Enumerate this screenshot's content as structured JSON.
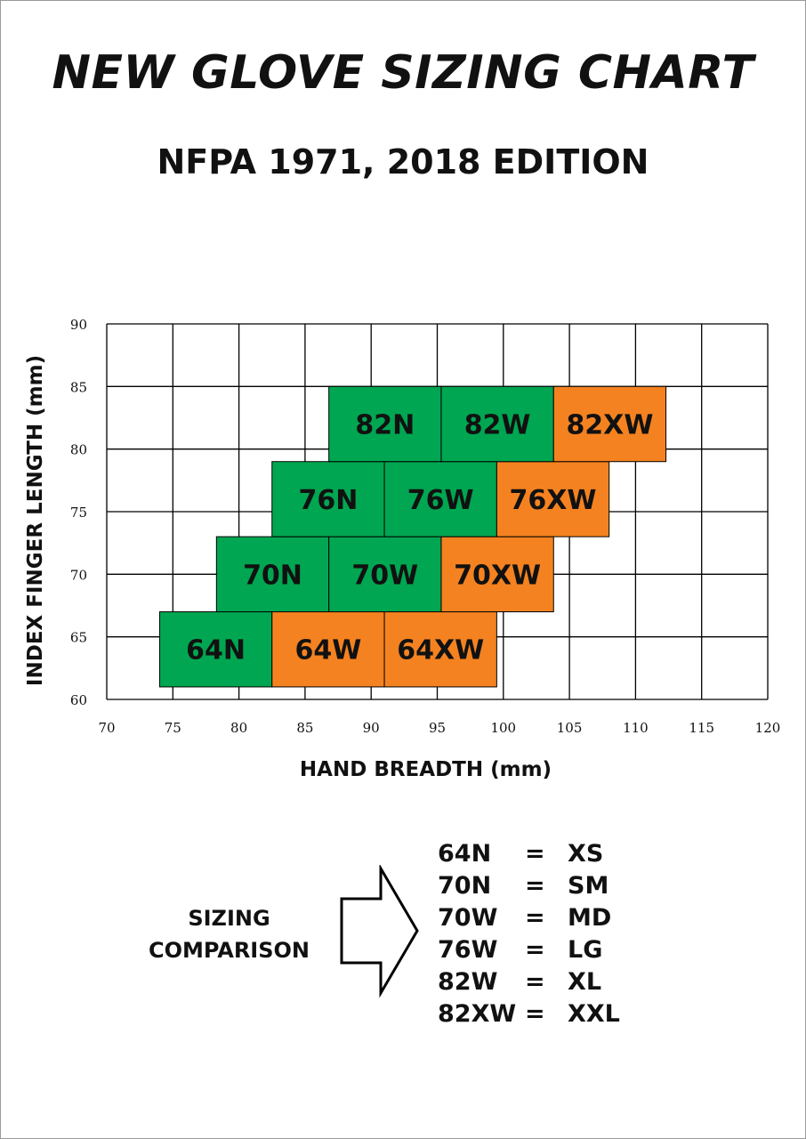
{
  "colors": {
    "normal": "#00a651",
    "xwide": "#f58220",
    "grid": "#000000",
    "text": "#111111"
  },
  "chart_data": {
    "type": "heatmap",
    "title": "NEW GLOVE SIZING CHART",
    "subtitle": "NFPA 1971, 2018 EDITION",
    "xlabel": "HAND BREADTH (mm)",
    "ylabel": "INDEX FINGER LENGTH (mm)",
    "xlim": [
      70,
      120
    ],
    "ylim": [
      60,
      90
    ],
    "xticks": [
      70,
      75,
      80,
      85,
      90,
      95,
      100,
      105,
      110,
      115,
      120
    ],
    "yticks": [
      60,
      65,
      70,
      75,
      80,
      85,
      90
    ],
    "grid": true,
    "cells": [
      {
        "label": "64N",
        "x": [
          74,
          82.5
        ],
        "y": [
          61,
          67
        ],
        "kind": "normal"
      },
      {
        "label": "64W",
        "x": [
          82.5,
          91
        ],
        "y": [
          61,
          67
        ],
        "kind": "xwide"
      },
      {
        "label": "64XW",
        "x": [
          91,
          99.5
        ],
        "y": [
          61,
          67
        ],
        "kind": "xwide"
      },
      {
        "label": "70N",
        "x": [
          78.3,
          86.8
        ],
        "y": [
          67,
          73
        ],
        "kind": "normal"
      },
      {
        "label": "70W",
        "x": [
          86.8,
          95.3
        ],
        "y": [
          67,
          73
        ],
        "kind": "normal"
      },
      {
        "label": "70XW",
        "x": [
          95.3,
          103.8
        ],
        "y": [
          67,
          73
        ],
        "kind": "xwide"
      },
      {
        "label": "76N",
        "x": [
          82.5,
          91
        ],
        "y": [
          73,
          79
        ],
        "kind": "normal"
      },
      {
        "label": "76W",
        "x": [
          91,
          99.5
        ],
        "y": [
          73,
          79
        ],
        "kind": "normal"
      },
      {
        "label": "76XW",
        "x": [
          99.5,
          108
        ],
        "y": [
          73,
          79
        ],
        "kind": "xwide"
      },
      {
        "label": "82N",
        "x": [
          86.8,
          95.3
        ],
        "y": [
          79,
          85
        ],
        "kind": "normal"
      },
      {
        "label": "82W",
        "x": [
          95.3,
          103.8
        ],
        "y": [
          79,
          85
        ],
        "kind": "normal"
      },
      {
        "label": "82XW",
        "x": [
          103.8,
          112.3
        ],
        "y": [
          79,
          85
        ],
        "kind": "xwide"
      }
    ]
  },
  "comparison": {
    "label_line1": "SIZING",
    "label_line2": "COMPARISON",
    "rows": [
      {
        "code": "64N",
        "eq": "=",
        "size": "XS"
      },
      {
        "code": "70N",
        "eq": "=",
        "size": "SM"
      },
      {
        "code": "70W",
        "eq": "=",
        "size": "MD"
      },
      {
        "code": "76W",
        "eq": "=",
        "size": "LG"
      },
      {
        "code": "82W",
        "eq": "=",
        "size": "XL"
      },
      {
        "code": "82XW",
        "eq": "=",
        "size": "XXL"
      }
    ]
  }
}
